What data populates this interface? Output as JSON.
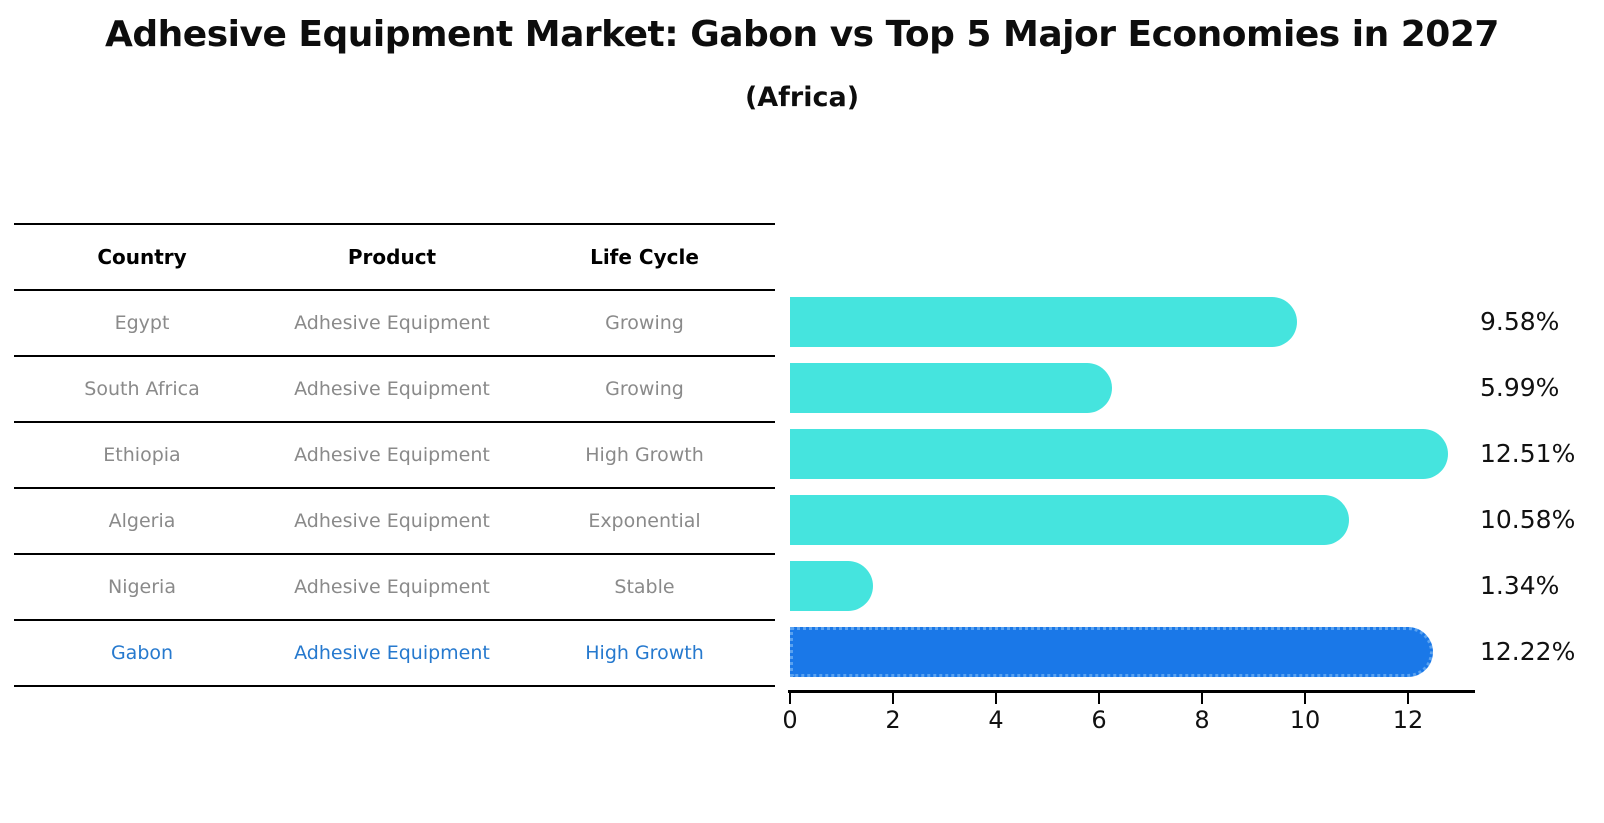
{
  "title": "Adhesive Equipment Market: Gabon vs Top 5 Major Economies in 2027",
  "subtitle": "(Africa)",
  "table": {
    "headers": [
      "Country",
      "Product",
      "Life Cycle"
    ],
    "rows": [
      {
        "country": "Egypt",
        "product": "Adhesive Equipment",
        "life_cycle": "Growing",
        "highlight": false
      },
      {
        "country": "South Africa",
        "product": "Adhesive Equipment",
        "life_cycle": "Growing",
        "highlight": false
      },
      {
        "country": "Ethiopia",
        "product": "Adhesive Equipment",
        "life_cycle": "High Growth",
        "highlight": false
      },
      {
        "country": "Algeria",
        "product": "Adhesive Equipment",
        "life_cycle": "Exponential",
        "highlight": false
      },
      {
        "country": "Nigeria",
        "product": "Adhesive Equipment",
        "life_cycle": "Stable",
        "highlight": false
      },
      {
        "country": "Gabon",
        "product": "Adhesive Equipment",
        "life_cycle": "High Growth",
        "highlight": true
      }
    ]
  },
  "chart_data": {
    "type": "bar",
    "orientation": "horizontal",
    "title": "Adhesive Equipment Market: Gabon vs Top 5 Major Economies in 2027 (Africa)",
    "categories": [
      "Egypt",
      "South Africa",
      "Ethiopia",
      "Algeria",
      "Nigeria",
      "Gabon"
    ],
    "values": [
      9.58,
      5.99,
      12.51,
      10.58,
      1.34,
      12.22
    ],
    "value_labels": [
      "9.58%",
      "5.99%",
      "12.51%",
      "10.58%",
      "1.34%",
      "12.22%"
    ],
    "x_ticks": [
      0,
      2,
      4,
      6,
      8,
      10,
      12
    ],
    "xlim": [
      0,
      13.3
    ],
    "xlabel": "",
    "ylabel": "",
    "grid": false,
    "legend": "none",
    "highlight_index": 5,
    "colors": {
      "bar": "#45E4DE",
      "highlight_bar": "#1A78E8",
      "highlight_edge": "#5AA2F0",
      "highlight_text": "#2679CE",
      "row_text": "#8A8A8A",
      "value_text": "#111111"
    }
  }
}
